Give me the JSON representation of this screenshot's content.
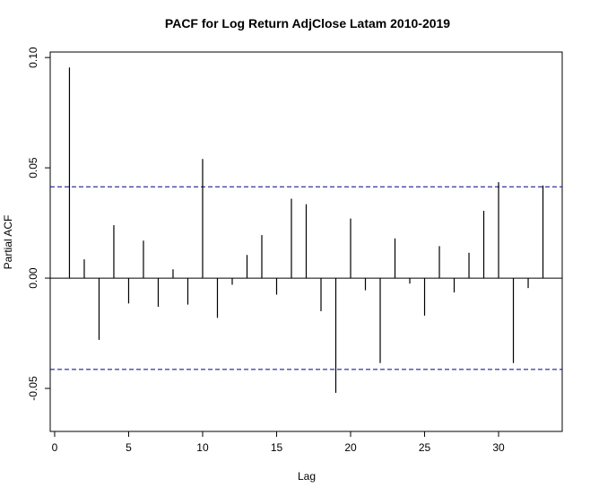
{
  "chart_data": {
    "type": "bar",
    "title": "PACF for Log Return AdjClose Latam 2010-2019",
    "xlabel": "Lag",
    "ylabel": "Partial ACF",
    "xlim": [
      -0.3,
      34.3
    ],
    "ylim": [
      -0.0695,
      0.1025
    ],
    "x_ticks": [
      0,
      5,
      10,
      15,
      20,
      25,
      30
    ],
    "y_ticks": [
      -0.05,
      0.0,
      0.05,
      0.1
    ],
    "y_tick_labels": [
      "-0.05",
      "0.00",
      "0.05",
      "0.10"
    ],
    "confidence_bounds": [
      0.0414,
      -0.0414
    ],
    "confidence_color": "#00008b",
    "grid": false,
    "legend": "none",
    "series": [
      {
        "x": [
          1,
          2,
          3,
          4,
          5,
          6,
          7,
          8,
          9,
          10,
          11,
          12,
          13,
          14,
          15,
          16,
          17,
          18,
          19,
          20,
          21,
          22,
          23,
          24,
          25,
          26,
          27,
          28,
          29,
          30,
          31,
          32,
          33
        ],
        "values": [
          0.0955,
          0.0085,
          -0.028,
          0.024,
          -0.0115,
          0.017,
          -0.013,
          0.004,
          -0.012,
          0.054,
          -0.018,
          -0.003,
          0.0105,
          0.0195,
          -0.0075,
          0.036,
          0.0335,
          -0.015,
          -0.052,
          0.027,
          -0.0055,
          -0.0385,
          0.018,
          -0.0025,
          -0.017,
          0.0145,
          -0.0065,
          0.0115,
          0.0305,
          0.0435,
          -0.0385,
          -0.0045,
          0.042
        ]
      }
    ]
  }
}
